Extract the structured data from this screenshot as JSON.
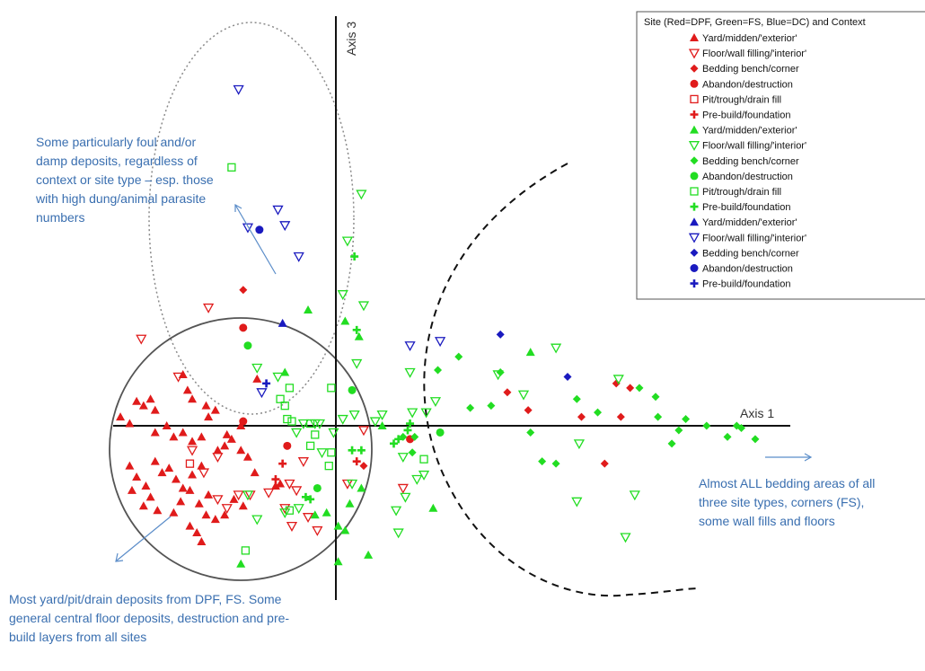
{
  "chart_data": {
    "type": "scatter",
    "title": "",
    "xlabel": "Axis 1",
    "ylabel": "Axis 3",
    "grid": false,
    "legend": {
      "title": "Site (Red=DPF, Green=FS, Blue=DC) and Context",
      "placement": "top-right",
      "entries": [
        {
          "label": "Yard/midden/'exterior'",
          "site": "DPF",
          "context": "yard",
          "color": "#e01b1b",
          "marker": "triangle"
        },
        {
          "label": "Floor/wall filling/'interior'",
          "site": "DPF",
          "context": "floor",
          "color": "#e01b1b",
          "marker": "triangle-down-open"
        },
        {
          "label": "Bedding bench/corner",
          "site": "DPF",
          "context": "bedding",
          "color": "#e01b1b",
          "marker": "diamond"
        },
        {
          "label": "Abandon/destruction",
          "site": "DPF",
          "context": "abandon",
          "color": "#e01b1b",
          "marker": "circle"
        },
        {
          "label": "Pit/trough/drain fill",
          "site": "DPF",
          "context": "pit",
          "color": "#e01b1b",
          "marker": "square-open"
        },
        {
          "label": "Pre-build/foundation",
          "site": "DPF",
          "context": "prebuild",
          "color": "#e01b1b",
          "marker": "plus"
        },
        {
          "label": "Yard/midden/'exterior'",
          "site": "FS",
          "context": "yard",
          "color": "#22dd22",
          "marker": "triangle"
        },
        {
          "label": "Floor/wall filling/'interior'",
          "site": "FS",
          "context": "floor",
          "color": "#22dd22",
          "marker": "triangle-down-open"
        },
        {
          "label": "Bedding bench/corner",
          "site": "FS",
          "context": "bedding",
          "color": "#22dd22",
          "marker": "diamond"
        },
        {
          "label": "Abandon/destruction",
          "site": "FS",
          "context": "abandon",
          "color": "#22dd22",
          "marker": "circle"
        },
        {
          "label": "Pit/trough/drain fill",
          "site": "FS",
          "context": "pit",
          "color": "#22dd22",
          "marker": "square-open"
        },
        {
          "label": "Pre-build/foundation",
          "site": "FS",
          "context": "prebuild",
          "color": "#22dd22",
          "marker": "plus"
        },
        {
          "label": "Yard/midden/'exterior'",
          "site": "DC",
          "context": "yard",
          "color": "#1a1abf",
          "marker": "triangle"
        },
        {
          "label": "Floor/wall filling/'interior'",
          "site": "DC",
          "context": "floor",
          "color": "#1a1abf",
          "marker": "triangle-down-open"
        },
        {
          "label": "Bedding bench/corner",
          "site": "DC",
          "context": "bedding",
          "color": "#1a1abf",
          "marker": "diamond"
        },
        {
          "label": "Abandon/destruction",
          "site": "DC",
          "context": "abandon",
          "color": "#1a1abf",
          "marker": "circle"
        },
        {
          "label": "Pre-build/foundation",
          "site": "DC",
          "context": "prebuild",
          "color": "#1a1abf",
          "marker": "plus"
        }
      ]
    },
    "xlim": [
      -1.0,
      2.1
    ],
    "ylim": [
      -0.82,
      1.84
    ],
    "note_scale": "unitless ordination scores; origin at axis crossing",
    "series": [
      {
        "site": "DPF",
        "context": "yard",
        "points": [
          [
            -0.93,
            0.04
          ],
          [
            -0.89,
            0.01
          ],
          [
            -0.86,
            0.11
          ],
          [
            -0.83,
            0.09
          ],
          [
            -0.8,
            0.12
          ],
          [
            -0.78,
            0.07
          ],
          [
            -0.73,
            0.0
          ],
          [
            -0.7,
            -0.05
          ],
          [
            -0.66,
            -0.03
          ],
          [
            -0.62,
            -0.07
          ],
          [
            -0.58,
            -0.05
          ],
          [
            -0.55,
            0.04
          ],
          [
            -0.52,
            0.07
          ],
          [
            -0.51,
            -0.11
          ],
          [
            -0.48,
            -0.09
          ],
          [
            -0.45,
            -0.06
          ],
          [
            -0.41,
            -0.11
          ],
          [
            -0.38,
            -0.14
          ],
          [
            -0.35,
            -0.21
          ],
          [
            -0.89,
            -0.18
          ],
          [
            -0.86,
            -0.23
          ],
          [
            -0.82,
            -0.27
          ],
          [
            -0.78,
            -0.16
          ],
          [
            -0.75,
            -0.21
          ],
          [
            -0.72,
            -0.19
          ],
          [
            -0.69,
            -0.24
          ],
          [
            -0.66,
            -0.28
          ],
          [
            -0.62,
            -0.22
          ],
          [
            -0.58,
            -0.18
          ],
          [
            -0.55,
            -0.31
          ],
          [
            -0.7,
            -0.39
          ],
          [
            -0.67,
            -0.34
          ],
          [
            -0.63,
            -0.29
          ],
          [
            -0.59,
            -0.35
          ],
          [
            -0.56,
            -0.4
          ],
          [
            -0.52,
            -0.42
          ],
          [
            -0.63,
            -0.45
          ],
          [
            -0.6,
            -0.48
          ],
          [
            -0.48,
            -0.4
          ],
          [
            -0.44,
            -0.33
          ],
          [
            -0.4,
            -0.36
          ],
          [
            -0.58,
            -0.52
          ],
          [
            -0.88,
            -0.29
          ],
          [
            -0.83,
            -0.36
          ],
          [
            -0.8,
            -0.32
          ],
          [
            -0.77,
            -0.38
          ],
          [
            -0.64,
            0.16
          ],
          [
            -0.62,
            0.12
          ],
          [
            -0.26,
            -0.27
          ],
          [
            -0.24,
            -0.26
          ],
          [
            -0.34,
            0.21
          ],
          [
            -0.41,
            0.0
          ],
          [
            -0.47,
            -0.04
          ],
          [
            -0.78,
            -0.03
          ],
          [
            -0.56,
            0.09
          ],
          [
            -0.66,
            0.23
          ]
        ]
      },
      {
        "site": "DPF",
        "context": "floor",
        "points": [
          [
            -0.84,
            0.39
          ],
          [
            -0.55,
            0.53
          ],
          [
            -0.68,
            0.22
          ],
          [
            -0.51,
            -0.33
          ],
          [
            -0.47,
            -0.37
          ],
          [
            -0.42,
            -0.31
          ],
          [
            -0.37,
            -0.31
          ],
          [
            -0.29,
            -0.3
          ],
          [
            -0.22,
            -0.37
          ],
          [
            -0.17,
            -0.29
          ],
          [
            -0.19,
            -0.45
          ],
          [
            -0.12,
            -0.41
          ],
          [
            -0.08,
            -0.47
          ],
          [
            -0.14,
            -0.16
          ],
          [
            -0.2,
            -0.26
          ],
          [
            -0.57,
            -0.21
          ],
          [
            -0.51,
            -0.14
          ],
          [
            -0.62,
            -0.11
          ],
          [
            0.05,
            -0.26
          ],
          [
            0.12,
            -0.02
          ],
          [
            0.29,
            -0.28
          ]
        ]
      },
      {
        "site": "DPF",
        "context": "bedding",
        "points": [
          [
            -0.4,
            0.61
          ],
          [
            0.74,
            0.15
          ],
          [
            0.83,
            0.07
          ],
          [
            1.27,
            0.17
          ],
          [
            1.23,
            0.04
          ],
          [
            1.21,
            0.19
          ],
          [
            1.06,
            0.04
          ],
          [
            1.16,
            -0.17
          ],
          [
            0.12,
            -0.18
          ]
        ]
      },
      {
        "site": "DPF",
        "context": "abandon",
        "points": [
          [
            -0.4,
            0.44
          ],
          [
            -0.4,
            0.02
          ],
          [
            -0.21,
            -0.09
          ],
          [
            0.32,
            -0.06
          ]
        ]
      },
      {
        "site": "DPF",
        "context": "pit",
        "points": [
          [
            -0.63,
            -0.17
          ]
        ]
      },
      {
        "site": "DPF",
        "context": "prebuild",
        "points": [
          [
            -0.26,
            -0.24
          ],
          [
            -0.23,
            -0.17
          ],
          [
            0.09,
            -0.16
          ]
        ]
      },
      {
        "site": "FS",
        "context": "yard",
        "points": [
          [
            -0.12,
            0.52
          ],
          [
            -0.22,
            0.24
          ],
          [
            0.04,
            0.47
          ],
          [
            0.1,
            0.4
          ],
          [
            0.42,
            -0.37
          ],
          [
            -0.04,
            -0.39
          ],
          [
            -0.09,
            -0.4
          ],
          [
            0.06,
            -0.35
          ],
          [
            0.11,
            -0.28
          ],
          [
            0.04,
            -0.47
          ],
          [
            0.01,
            -0.61
          ],
          [
            0.14,
            -0.58
          ],
          [
            -0.41,
            -0.62
          ],
          [
            0.01,
            -0.45
          ],
          [
            0.2,
            0.0
          ],
          [
            0.84,
            0.33
          ]
        ]
      },
      {
        "site": "FS",
        "context": "floor",
        "points": [
          [
            -0.25,
            0.22
          ],
          [
            -0.34,
            0.26
          ],
          [
            0.09,
            0.28
          ],
          [
            -0.38,
            -0.31
          ],
          [
            -0.34,
            -0.42
          ],
          [
            -0.22,
            -0.39
          ],
          [
            -0.16,
            -0.37
          ],
          [
            -0.06,
            -0.12
          ],
          [
            0.03,
            0.03
          ],
          [
            0.08,
            0.05
          ],
          [
            0.2,
            0.05
          ],
          [
            0.33,
            0.06
          ],
          [
            0.43,
            0.11
          ],
          [
            0.11,
            1.04
          ],
          [
            0.05,
            0.83
          ],
          [
            0.03,
            0.59
          ],
          [
            0.27,
            -0.48
          ],
          [
            0.26,
            -0.38
          ],
          [
            0.3,
            -0.32
          ],
          [
            0.35,
            -0.24
          ],
          [
            0.7,
            0.23
          ],
          [
            0.81,
            0.14
          ],
          [
            0.95,
            0.35
          ],
          [
            1.05,
            -0.08
          ],
          [
            1.22,
            0.21
          ],
          [
            1.29,
            -0.31
          ],
          [
            1.25,
            -0.5
          ],
          [
            1.04,
            -0.34
          ],
          [
            0.32,
            0.24
          ],
          [
            0.39,
            0.06
          ],
          [
            -0.17,
            -0.03
          ],
          [
            -0.09,
            0.01
          ],
          [
            0.12,
            0.54
          ],
          [
            -0.01,
            -0.03
          ],
          [
            -0.07,
            0.01
          ],
          [
            -0.14,
            0.01
          ],
          [
            0.29,
            -0.14
          ],
          [
            0.17,
            0.02
          ],
          [
            0.07,
            -0.26
          ],
          [
            0.38,
            -0.22
          ]
        ]
      },
      {
        "site": "FS",
        "context": "bedding",
        "points": [
          [
            0.44,
            0.25
          ],
          [
            0.34,
            -0.05
          ],
          [
            0.53,
            0.31
          ],
          [
            0.58,
            0.08
          ],
          [
            0.67,
            0.09
          ],
          [
            0.71,
            0.24
          ],
          [
            0.84,
            -0.03
          ],
          [
            0.89,
            -0.16
          ],
          [
            0.95,
            -0.17
          ],
          [
            1.04,
            0.12
          ],
          [
            1.13,
            0.06
          ],
          [
            1.31,
            0.17
          ],
          [
            1.38,
            0.13
          ],
          [
            1.39,
            0.04
          ],
          [
            1.48,
            -0.02
          ],
          [
            1.51,
            0.03
          ],
          [
            1.45,
            -0.08
          ],
          [
            1.6,
            0.0
          ],
          [
            1.69,
            -0.05
          ],
          [
            1.73,
            0.0
          ],
          [
            1.75,
            -0.01
          ],
          [
            1.81,
            -0.06
          ],
          [
            0.29,
            -0.05
          ],
          [
            0.33,
            -0.12
          ]
        ]
      },
      {
        "site": "FS",
        "context": "abandon",
        "points": [
          [
            -0.38,
            0.36
          ],
          [
            0.07,
            0.16
          ],
          [
            0.45,
            -0.03
          ],
          [
            -0.08,
            -0.28
          ]
        ]
      },
      {
        "site": "FS",
        "context": "pit",
        "points": [
          [
            -0.45,
            1.16
          ],
          [
            -0.2,
            0.17
          ],
          [
            -0.22,
            0.09
          ],
          [
            -0.24,
            0.12
          ],
          [
            -0.02,
            0.17
          ],
          [
            -0.19,
            0.02
          ],
          [
            -0.11,
            0.01
          ],
          [
            -0.09,
            -0.04
          ],
          [
            -0.11,
            -0.09
          ],
          [
            -0.02,
            -0.12
          ],
          [
            -0.03,
            -0.18
          ],
          [
            -0.2,
            -0.38
          ],
          [
            -0.39,
            -0.56
          ],
          [
            0.38,
            -0.15
          ],
          [
            -0.21,
            0.03
          ]
        ]
      },
      {
        "site": "FS",
        "context": "prebuild",
        "points": [
          [
            0.08,
            0.76
          ],
          [
            0.09,
            0.43
          ],
          [
            0.07,
            -0.11
          ],
          [
            0.11,
            -0.11
          ],
          [
            0.25,
            -0.08
          ],
          [
            0.27,
            -0.06
          ],
          [
            0.31,
            -0.02
          ],
          [
            0.32,
            0.01
          ],
          [
            -0.11,
            -0.33
          ],
          [
            -0.13,
            -0.32
          ]
        ]
      },
      {
        "site": "DC",
        "context": "yard",
        "points": [
          [
            -0.23,
            0.46
          ]
        ]
      },
      {
        "site": "DC",
        "context": "floor",
        "points": [
          [
            -0.42,
            1.51
          ],
          [
            -0.22,
            0.9
          ],
          [
            -0.25,
            0.97
          ],
          [
            -0.38,
            0.89
          ],
          [
            -0.16,
            0.76
          ],
          [
            0.32,
            0.36
          ],
          [
            0.45,
            0.38
          ],
          [
            -0.32,
            0.15
          ]
        ]
      },
      {
        "site": "DC",
        "context": "bedding",
        "points": [
          [
            0.71,
            0.41
          ],
          [
            1.0,
            0.22
          ]
        ]
      },
      {
        "site": "DC",
        "context": "abandon",
        "points": [
          [
            -0.33,
            0.88
          ]
        ]
      },
      {
        "site": "DC",
        "context": "prebuild",
        "points": [
          [
            -0.3,
            0.19
          ]
        ]
      }
    ],
    "annotations": [
      "Some particularly foul and/or damp deposits, regardless of context or site type – esp. those with high dung/animal parasite numbers",
      "Almost ALL bedding areas of all three site types, corners (FS), some wall fills and floors",
      "Most yard/pit/drain deposits from DPF, FS. Some general central floor deposits, destruction and pre-build layers from all sites"
    ]
  }
}
